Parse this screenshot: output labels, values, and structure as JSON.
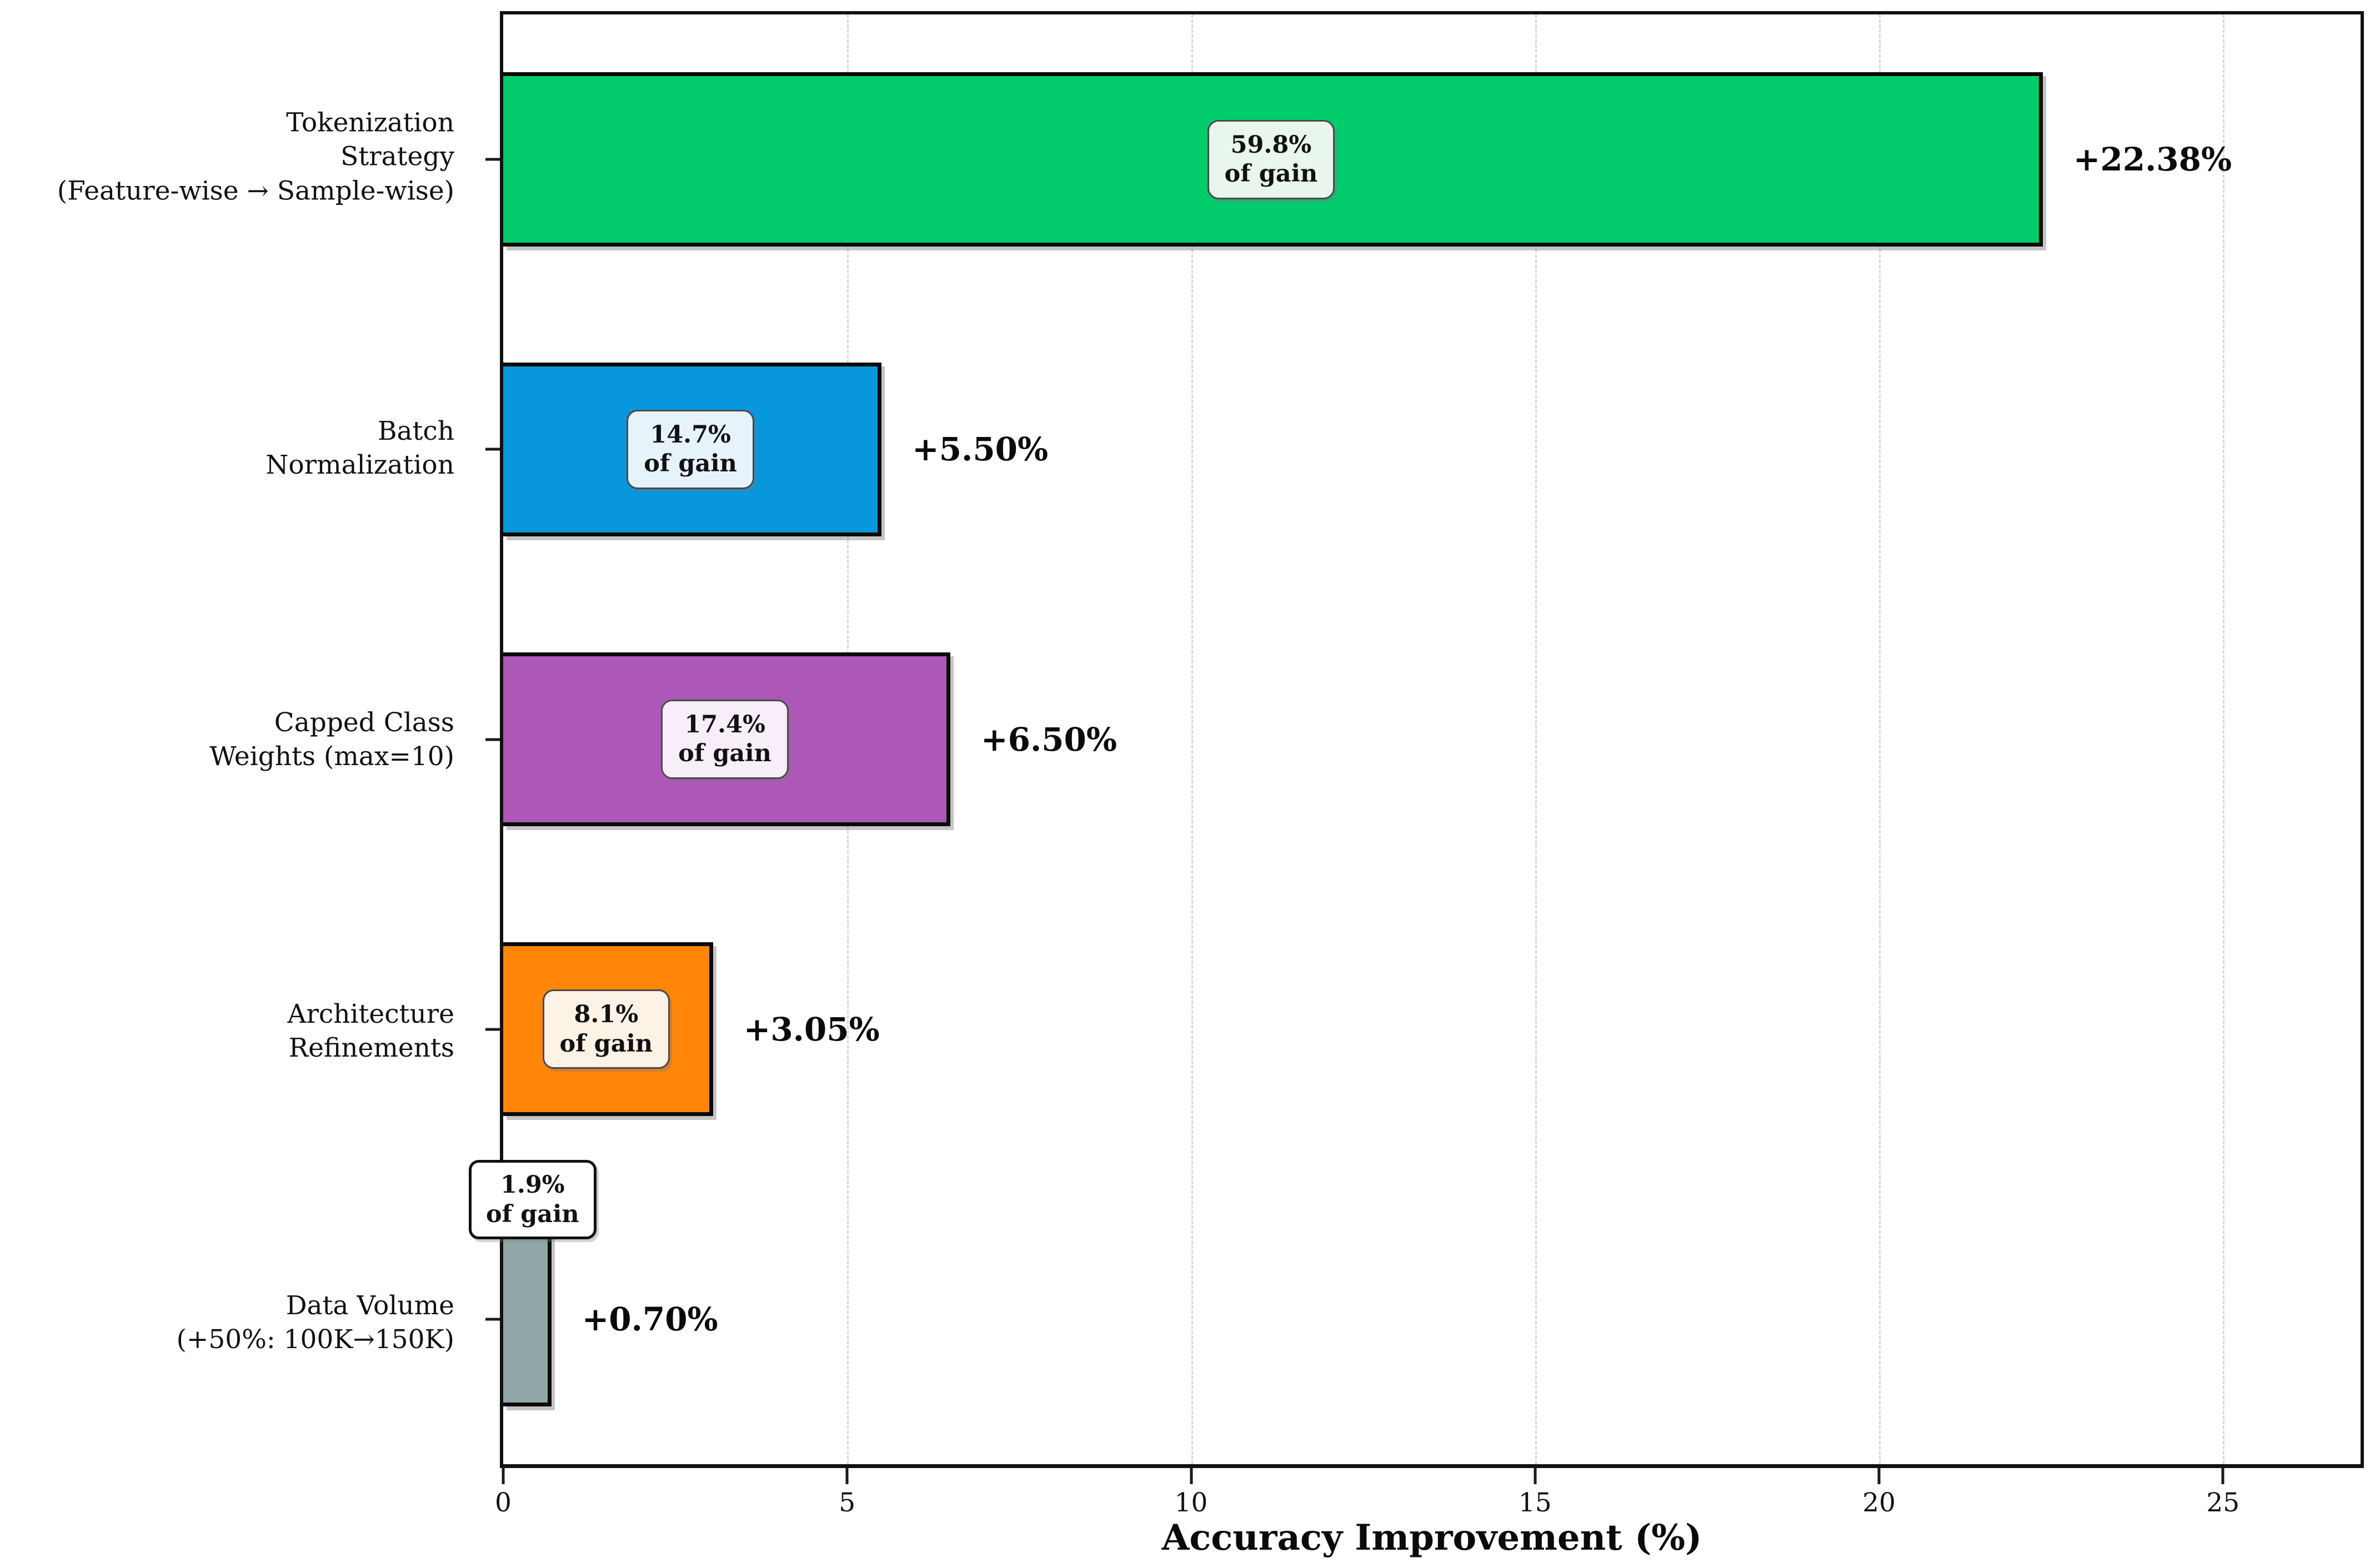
{
  "chart_data": {
    "type": "bar",
    "orientation": "horizontal",
    "title": "",
    "xlabel": "Accuracy Improvement (%)",
    "ylabel": "",
    "xlim": [
      0,
      27
    ],
    "xticks": [
      0,
      5,
      10,
      15,
      20,
      25
    ],
    "grid": {
      "axis": "x",
      "style": "dashed",
      "color": "#d7d7d7"
    },
    "legend": "none",
    "categories": [
      "Tokenization\nStrategy\n(Feature-wise → Sample-wise)",
      "Batch\nNormalization",
      "Capped Class\nWeights (max=10)",
      "Architecture\nRefinements",
      "Data Volume\n(+50%: 100K→150K)"
    ],
    "values": [
      22.38,
      5.5,
      6.5,
      3.05,
      0.7
    ],
    "value_labels": [
      "+22.38%",
      "+5.50%",
      "+6.50%",
      "+3.05%",
      "+0.70%"
    ],
    "gain_share_labels": [
      "59.8%",
      "14.7%",
      "17.4%",
      "8.1%",
      "1.9%"
    ],
    "gain_caption": "of gain",
    "bar_colors": [
      "#02cb6b",
      "#0897dc",
      "#ad58b8",
      "#ff8609",
      "#91a7a7"
    ],
    "gain_box_backgrounds": [
      "#e9f6ee",
      "#e7f3fb",
      "#f8eef9",
      "#fdf2e6",
      "#ffffff"
    ],
    "bar_edge_color": "#0a0a0a",
    "text_color": "#111111"
  }
}
